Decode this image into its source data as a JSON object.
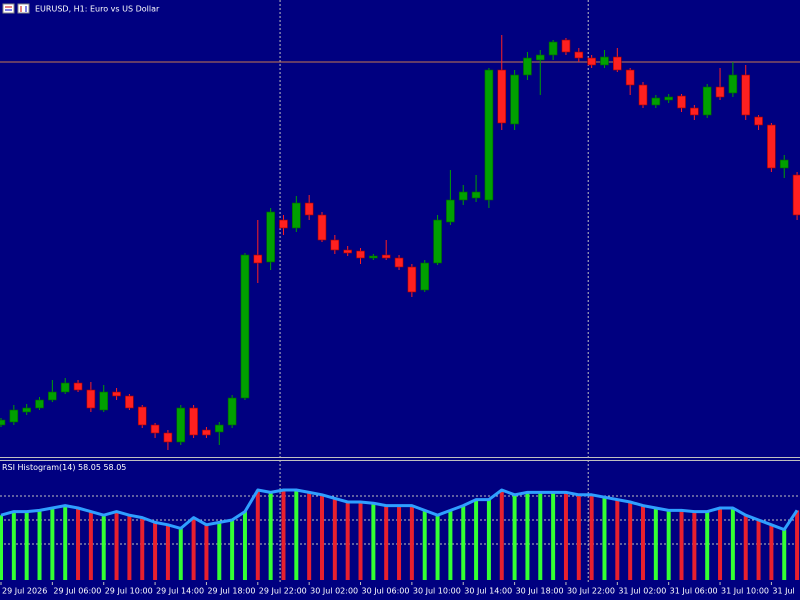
{
  "chart_data": [
    {
      "type": "candlestick",
      "title": "EURUSD, H1: Euro vs US Dollar",
      "categories": [
        "29 Jul 2026",
        null,
        null,
        null,
        "29 Jul 06:00",
        null,
        null,
        null,
        "29 Jul 10:00",
        null,
        null,
        null,
        "29 Jul 14:00",
        null,
        null,
        null,
        "29 Jul 18:00",
        null,
        null,
        null,
        "29 Jul 22:00",
        null,
        null,
        null,
        "30 Jul 02:00",
        null,
        null,
        null,
        "30 Jul 06:00",
        null,
        null,
        null,
        "30 Jul 10:00",
        null,
        null,
        null,
        "30 Jul 14:00",
        null,
        null,
        null,
        "30 Jul 18:00",
        null,
        null,
        null,
        "30 Jul 22:00",
        null,
        null,
        null,
        "31 Jul 02:00",
        null,
        null,
        null,
        "31 Jul 06:00",
        null,
        null,
        null,
        "31 Jul 10:00",
        null,
        null,
        null,
        "31 Jul",
        null,
        null
      ],
      "open": [
        35,
        38,
        48,
        52,
        60,
        68,
        77,
        70,
        50,
        68,
        64,
        53,
        35,
        27,
        18,
        52,
        30,
        28,
        35,
        62,
        205,
        198,
        240,
        232,
        257,
        245,
        220,
        210,
        209,
        202,
        205,
        202,
        193,
        170,
        197,
        238,
        260,
        262,
        260,
        390,
        336,
        385,
        400,
        405,
        420,
        408,
        402,
        395,
        403,
        390,
        375,
        355,
        360,
        364,
        352,
        345,
        373,
        367,
        385,
        343,
        335,
        292,
        285
      ],
      "high": [
        42,
        55,
        56,
        63,
        80,
        82,
        80,
        78,
        75,
        72,
        66,
        55,
        37,
        30,
        55,
        55,
        33,
        38,
        65,
        207,
        240,
        252,
        245,
        264,
        265,
        248,
        225,
        214,
        212,
        206,
        220,
        205,
        196,
        200,
        245,
        290,
        275,
        285,
        392,
        425,
        390,
        408,
        410,
        420,
        422,
        412,
        405,
        410,
        412,
        392,
        378,
        365,
        366,
        366,
        355,
        376,
        392,
        398,
        395,
        345,
        337,
        305,
        288
      ],
      "low": [
        33,
        35,
        45,
        50,
        58,
        66,
        68,
        48,
        48,
        60,
        50,
        32,
        22,
        10,
        15,
        22,
        22,
        15,
        32,
        60,
        177,
        190,
        225,
        228,
        240,
        218,
        206,
        204,
        196,
        200,
        200,
        190,
        163,
        168,
        195,
        235,
        255,
        258,
        252,
        330,
        330,
        380,
        365,
        400,
        405,
        398,
        392,
        392,
        388,
        365,
        352,
        352,
        357,
        348,
        340,
        342,
        360,
        363,
        340,
        330,
        288,
        282,
        240
      ],
      "close": [
        40,
        50,
        52,
        60,
        68,
        77,
        70,
        52,
        68,
        64,
        52,
        35,
        27,
        18,
        52,
        25,
        25,
        35,
        62,
        205,
        197,
        248,
        232,
        257,
        245,
        220,
        210,
        207,
        202,
        204,
        202,
        193,
        168,
        197,
        240,
        260,
        268,
        268,
        390,
        337,
        385,
        402,
        405,
        418,
        408,
        402,
        395,
        403,
        390,
        375,
        355,
        362,
        363,
        352,
        345,
        373,
        363,
        385,
        345,
        335,
        292,
        300,
        245
      ],
      "up_color": "#00a000",
      "down_color": "#ff2020",
      "ylim": [
        0,
        460
      ],
      "price_line": 398,
      "price_line_color": "#c87850"
    },
    {
      "type": "histogram-indicator",
      "title": "RSI Histogram(14)",
      "values": [
        54,
        57,
        57,
        58,
        60,
        62,
        60,
        57,
        54,
        57,
        54,
        52,
        48,
        46,
        43,
        52,
        46,
        48,
        50,
        57,
        75,
        73,
        75,
        75,
        73,
        71,
        68,
        65,
        65,
        64,
        62,
        62,
        62,
        58,
        54,
        58,
        62,
        67,
        67,
        75,
        71,
        73,
        73,
        73,
        73,
        71,
        71,
        69,
        67,
        65,
        62,
        60,
        58,
        58,
        57,
        57,
        60,
        60,
        54,
        50,
        46,
        42,
        58.05
      ],
      "up_color": "#33ff33",
      "down_color": "#e8202e",
      "line_color": "#2f9fff",
      "ylim": [
        0,
        100
      ],
      "levels": [
        70,
        50,
        30
      ]
    }
  ]
}
